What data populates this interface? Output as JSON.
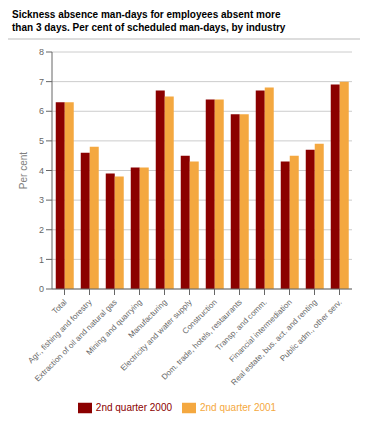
{
  "chart_data": {
    "type": "bar",
    "title": "Sickness absence man-days for employees absent more\nthan 3 days. Per cent of scheduled man-days, by industry",
    "ylabel": "Per cent",
    "categories": [
      "Total",
      "Agr., fishing and forestry",
      "Extraction of oil and natural gas",
      "Mining and quarrying",
      "Manufacturing",
      "Electricity and water supply",
      "Construction",
      "Dom. trade, hotels, restaurants",
      "Transp. and comm.",
      "Financial intermediation",
      "Real estate, bus. act. and renting",
      "Public adm., other serv."
    ],
    "series": [
      {
        "name": "2nd quarter 2000",
        "color": "#8B0000",
        "values": [
          6.3,
          4.6,
          3.9,
          4.1,
          6.7,
          4.5,
          6.4,
          5.9,
          6.7,
          4.3,
          4.7,
          6.9
        ]
      },
      {
        "name": "2nd quarter 2001",
        "color": "#F4A840",
        "values": [
          6.3,
          4.8,
          3.8,
          4.1,
          6.5,
          4.3,
          6.4,
          5.9,
          6.8,
          4.5,
          4.9,
          7.0
        ]
      }
    ],
    "ylim": [
      0,
      8
    ],
    "yticks": [
      0,
      1,
      2,
      3,
      4,
      5,
      6,
      7,
      8
    ],
    "grid": true,
    "legend": "bottom"
  }
}
